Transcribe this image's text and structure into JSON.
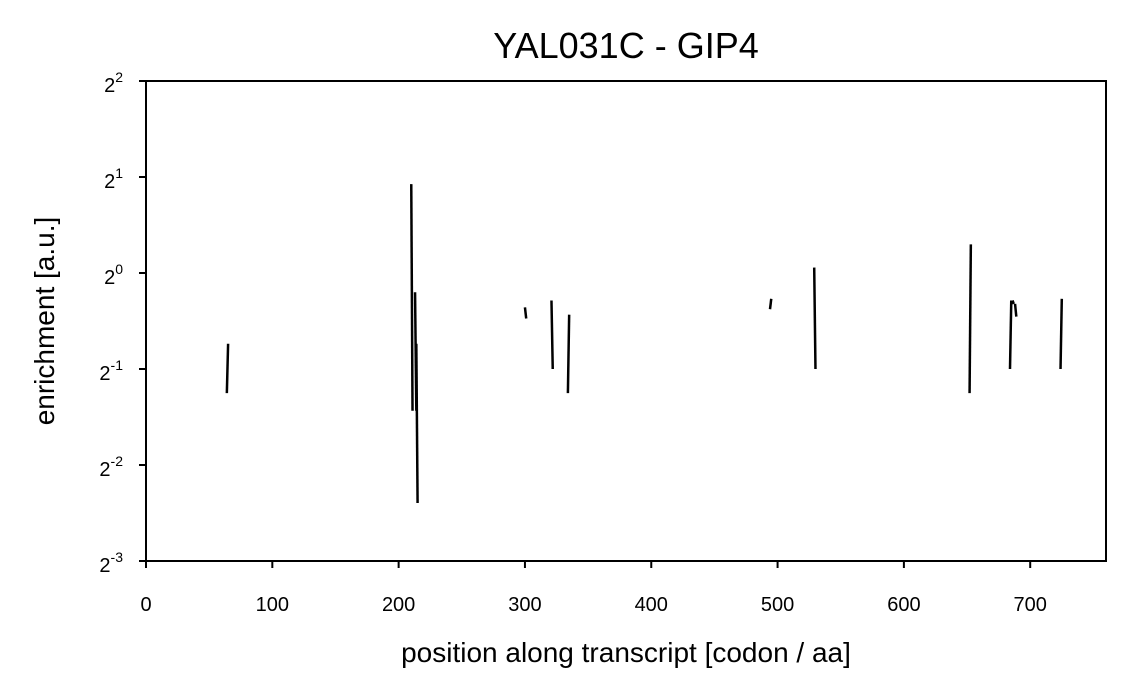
{
  "chart_data": {
    "type": "line",
    "title": "YAL031C - GIP4",
    "xlabel": "position along transcript [codon / aa]",
    "ylabel": "enrichment [a.u.]",
    "xlim": [
      0,
      760
    ],
    "ylim_log2": [
      -3,
      2
    ],
    "y_scale": "log2",
    "grid": false,
    "x_ticks": [
      {
        "value": 0,
        "label": "0"
      },
      {
        "value": 100,
        "label": "100"
      },
      {
        "value": 200,
        "label": "200"
      },
      {
        "value": 300,
        "label": "300"
      },
      {
        "value": 400,
        "label": "400"
      },
      {
        "value": 500,
        "label": "500"
      },
      {
        "value": 600,
        "label": "600"
      },
      {
        "value": 700,
        "label": "700"
      }
    ],
    "y_ticks": [
      {
        "exp": 2,
        "base": "2",
        "sup": "2"
      },
      {
        "exp": 1,
        "base": "2",
        "sup": "1"
      },
      {
        "exp": 0,
        "base": "2",
        "sup": "0"
      },
      {
        "exp": -1,
        "base": "2",
        "sup": "-1"
      },
      {
        "exp": -2,
        "base": "2",
        "sup": "-2"
      },
      {
        "exp": -3,
        "base": "2",
        "sup": "-3"
      }
    ],
    "segments": [
      {
        "x": [
          64,
          65
        ],
        "y": [
          0.42,
          0.6
        ]
      },
      {
        "x": [
          210,
          211
        ],
        "y": [
          1.9,
          0.37
        ]
      },
      {
        "x": [
          213,
          214
        ],
        "y": [
          0.87,
          0.37
        ]
      },
      {
        "x": [
          214,
          215
        ],
        "y": [
          0.6,
          0.19
        ]
      },
      {
        "x": [
          300,
          301
        ],
        "y": [
          0.78,
          0.72
        ]
      },
      {
        "x": [
          321,
          322
        ],
        "y": [
          0.82,
          0.5
        ]
      },
      {
        "x": [
          334,
          335
        ],
        "y": [
          0.42,
          0.74
        ]
      },
      {
        "x": [
          494,
          495
        ],
        "y": [
          0.77,
          0.83
        ]
      },
      {
        "x": [
          529,
          530
        ],
        "y": [
          1.04,
          0.5
        ]
      },
      {
        "x": [
          652,
          653
        ],
        "y": [
          0.42,
          1.23
        ]
      },
      {
        "x": [
          684,
          685
        ],
        "y": [
          0.5,
          0.82
        ]
      },
      {
        "x": [
          686,
          687
        ],
        "y": [
          0.82,
          0.8
        ]
      },
      {
        "x": [
          688,
          689
        ],
        "y": [
          0.8,
          0.73
        ]
      },
      {
        "x": [
          724,
          725
        ],
        "y": [
          0.5,
          0.83
        ]
      }
    ]
  }
}
